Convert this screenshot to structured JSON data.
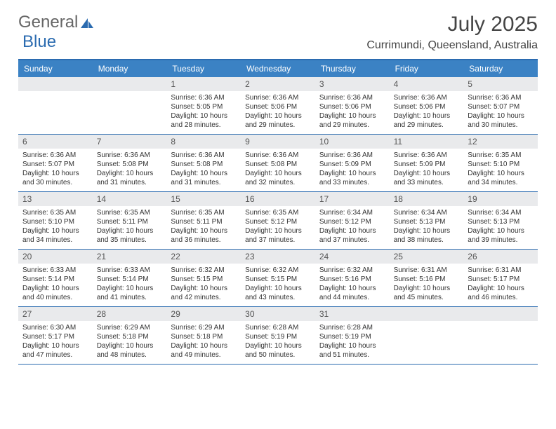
{
  "logo": {
    "text1": "General",
    "text2": "Blue"
  },
  "title": "July 2025",
  "location": "Currimundi, Queensland, Australia",
  "colors": {
    "header_bar": "#3b82c4",
    "divider": "#2b6bb0",
    "daynum_bg": "#e9eaec",
    "text": "#333333",
    "title_text": "#444444"
  },
  "days_of_week": [
    "Sunday",
    "Monday",
    "Tuesday",
    "Wednesday",
    "Thursday",
    "Friday",
    "Saturday"
  ],
  "weeks": [
    [
      {
        "n": "",
        "sr": "",
        "ss": "",
        "dl1": "",
        "dl2": ""
      },
      {
        "n": "",
        "sr": "",
        "ss": "",
        "dl1": "",
        "dl2": ""
      },
      {
        "n": "1",
        "sr": "Sunrise: 6:36 AM",
        "ss": "Sunset: 5:05 PM",
        "dl1": "Daylight: 10 hours",
        "dl2": "and 28 minutes."
      },
      {
        "n": "2",
        "sr": "Sunrise: 6:36 AM",
        "ss": "Sunset: 5:06 PM",
        "dl1": "Daylight: 10 hours",
        "dl2": "and 29 minutes."
      },
      {
        "n": "3",
        "sr": "Sunrise: 6:36 AM",
        "ss": "Sunset: 5:06 PM",
        "dl1": "Daylight: 10 hours",
        "dl2": "and 29 minutes."
      },
      {
        "n": "4",
        "sr": "Sunrise: 6:36 AM",
        "ss": "Sunset: 5:06 PM",
        "dl1": "Daylight: 10 hours",
        "dl2": "and 29 minutes."
      },
      {
        "n": "5",
        "sr": "Sunrise: 6:36 AM",
        "ss": "Sunset: 5:07 PM",
        "dl1": "Daylight: 10 hours",
        "dl2": "and 30 minutes."
      }
    ],
    [
      {
        "n": "6",
        "sr": "Sunrise: 6:36 AM",
        "ss": "Sunset: 5:07 PM",
        "dl1": "Daylight: 10 hours",
        "dl2": "and 30 minutes."
      },
      {
        "n": "7",
        "sr": "Sunrise: 6:36 AM",
        "ss": "Sunset: 5:08 PM",
        "dl1": "Daylight: 10 hours",
        "dl2": "and 31 minutes."
      },
      {
        "n": "8",
        "sr": "Sunrise: 6:36 AM",
        "ss": "Sunset: 5:08 PM",
        "dl1": "Daylight: 10 hours",
        "dl2": "and 31 minutes."
      },
      {
        "n": "9",
        "sr": "Sunrise: 6:36 AM",
        "ss": "Sunset: 5:08 PM",
        "dl1": "Daylight: 10 hours",
        "dl2": "and 32 minutes."
      },
      {
        "n": "10",
        "sr": "Sunrise: 6:36 AM",
        "ss": "Sunset: 5:09 PM",
        "dl1": "Daylight: 10 hours",
        "dl2": "and 33 minutes."
      },
      {
        "n": "11",
        "sr": "Sunrise: 6:36 AM",
        "ss": "Sunset: 5:09 PM",
        "dl1": "Daylight: 10 hours",
        "dl2": "and 33 minutes."
      },
      {
        "n": "12",
        "sr": "Sunrise: 6:35 AM",
        "ss": "Sunset: 5:10 PM",
        "dl1": "Daylight: 10 hours",
        "dl2": "and 34 minutes."
      }
    ],
    [
      {
        "n": "13",
        "sr": "Sunrise: 6:35 AM",
        "ss": "Sunset: 5:10 PM",
        "dl1": "Daylight: 10 hours",
        "dl2": "and 34 minutes."
      },
      {
        "n": "14",
        "sr": "Sunrise: 6:35 AM",
        "ss": "Sunset: 5:11 PM",
        "dl1": "Daylight: 10 hours",
        "dl2": "and 35 minutes."
      },
      {
        "n": "15",
        "sr": "Sunrise: 6:35 AM",
        "ss": "Sunset: 5:11 PM",
        "dl1": "Daylight: 10 hours",
        "dl2": "and 36 minutes."
      },
      {
        "n": "16",
        "sr": "Sunrise: 6:35 AM",
        "ss": "Sunset: 5:12 PM",
        "dl1": "Daylight: 10 hours",
        "dl2": "and 37 minutes."
      },
      {
        "n": "17",
        "sr": "Sunrise: 6:34 AM",
        "ss": "Sunset: 5:12 PM",
        "dl1": "Daylight: 10 hours",
        "dl2": "and 37 minutes."
      },
      {
        "n": "18",
        "sr": "Sunrise: 6:34 AM",
        "ss": "Sunset: 5:13 PM",
        "dl1": "Daylight: 10 hours",
        "dl2": "and 38 minutes."
      },
      {
        "n": "19",
        "sr": "Sunrise: 6:34 AM",
        "ss": "Sunset: 5:13 PM",
        "dl1": "Daylight: 10 hours",
        "dl2": "and 39 minutes."
      }
    ],
    [
      {
        "n": "20",
        "sr": "Sunrise: 6:33 AM",
        "ss": "Sunset: 5:14 PM",
        "dl1": "Daylight: 10 hours",
        "dl2": "and 40 minutes."
      },
      {
        "n": "21",
        "sr": "Sunrise: 6:33 AM",
        "ss": "Sunset: 5:14 PM",
        "dl1": "Daylight: 10 hours",
        "dl2": "and 41 minutes."
      },
      {
        "n": "22",
        "sr": "Sunrise: 6:32 AM",
        "ss": "Sunset: 5:15 PM",
        "dl1": "Daylight: 10 hours",
        "dl2": "and 42 minutes."
      },
      {
        "n": "23",
        "sr": "Sunrise: 6:32 AM",
        "ss": "Sunset: 5:15 PM",
        "dl1": "Daylight: 10 hours",
        "dl2": "and 43 minutes."
      },
      {
        "n": "24",
        "sr": "Sunrise: 6:32 AM",
        "ss": "Sunset: 5:16 PM",
        "dl1": "Daylight: 10 hours",
        "dl2": "and 44 minutes."
      },
      {
        "n": "25",
        "sr": "Sunrise: 6:31 AM",
        "ss": "Sunset: 5:16 PM",
        "dl1": "Daylight: 10 hours",
        "dl2": "and 45 minutes."
      },
      {
        "n": "26",
        "sr": "Sunrise: 6:31 AM",
        "ss": "Sunset: 5:17 PM",
        "dl1": "Daylight: 10 hours",
        "dl2": "and 46 minutes."
      }
    ],
    [
      {
        "n": "27",
        "sr": "Sunrise: 6:30 AM",
        "ss": "Sunset: 5:17 PM",
        "dl1": "Daylight: 10 hours",
        "dl2": "and 47 minutes."
      },
      {
        "n": "28",
        "sr": "Sunrise: 6:29 AM",
        "ss": "Sunset: 5:18 PM",
        "dl1": "Daylight: 10 hours",
        "dl2": "and 48 minutes."
      },
      {
        "n": "29",
        "sr": "Sunrise: 6:29 AM",
        "ss": "Sunset: 5:18 PM",
        "dl1": "Daylight: 10 hours",
        "dl2": "and 49 minutes."
      },
      {
        "n": "30",
        "sr": "Sunrise: 6:28 AM",
        "ss": "Sunset: 5:19 PM",
        "dl1": "Daylight: 10 hours",
        "dl2": "and 50 minutes."
      },
      {
        "n": "31",
        "sr": "Sunrise: 6:28 AM",
        "ss": "Sunset: 5:19 PM",
        "dl1": "Daylight: 10 hours",
        "dl2": "and 51 minutes."
      },
      {
        "n": "",
        "sr": "",
        "ss": "",
        "dl1": "",
        "dl2": ""
      },
      {
        "n": "",
        "sr": "",
        "ss": "",
        "dl1": "",
        "dl2": ""
      }
    ]
  ]
}
